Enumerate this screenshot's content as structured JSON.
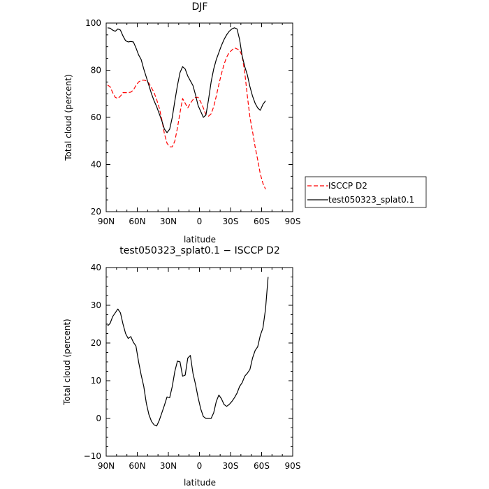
{
  "chart_data": [
    {
      "type": "line",
      "title": "DJF",
      "xlabel": "latitude",
      "ylabel": "Total cloud (percent)",
      "xlim": [
        90,
        -90
      ],
      "ylim": [
        20,
        100
      ],
      "x_ticks": [
        90,
        60,
        30,
        0,
        -30,
        -60,
        -90
      ],
      "x_tick_labels": [
        "90N",
        "60N",
        "30N",
        "0",
        "30S",
        "60S",
        "90S"
      ],
      "y_ticks": [
        20,
        40,
        60,
        80,
        100
      ],
      "y_tick_labels": [
        "20",
        "40",
        "60",
        "80",
        "100"
      ],
      "legend": "right of plot",
      "series": [
        {
          "name": "ISCCP D2",
          "color": "#ff0000",
          "dash": "dashed",
          "points": [
            [
              88.75,
              73.7
            ],
            [
              86.25,
              73.0
            ],
            [
              83.75,
              70.5
            ],
            [
              81.25,
              68.5
            ],
            [
              78.75,
              68.0
            ],
            [
              76.25,
              69.0
            ],
            [
              73.75,
              70.5
            ],
            [
              71.25,
              70.5
            ],
            [
              68.75,
              70.5
            ],
            [
              66.25,
              70.7
            ],
            [
              63.75,
              71.6
            ],
            [
              61.25,
              73.5
            ],
            [
              58.75,
              75.0
            ],
            [
              56.25,
              75.7
            ],
            [
              53.75,
              75.8
            ],
            [
              51.25,
              75.5
            ],
            [
              48.75,
              74.5
            ],
            [
              46.25,
              72.5
            ],
            [
              43.75,
              70.5
            ],
            [
              41.25,
              67.5
            ],
            [
              38.75,
              64.0
            ],
            [
              36.25,
              59.0
            ],
            [
              33.75,
              53.0
            ],
            [
              31.25,
              49.0
            ],
            [
              28.75,
              47.5
            ],
            [
              26.25,
              47.5
            ],
            [
              23.75,
              50.0
            ],
            [
              21.25,
              55.5
            ],
            [
              18.75,
              62.0
            ],
            [
              16.25,
              68.0
            ],
            [
              13.75,
              66.0
            ],
            [
              11.25,
              64.0
            ],
            [
              8.75,
              66.0
            ],
            [
              6.25,
              67.5
            ],
            [
              3.75,
              68.5
            ],
            [
              1.25,
              68.5
            ],
            [
              -1.25,
              66.5
            ],
            [
              -3.75,
              64.0
            ],
            [
              -6.25,
              61.0
            ],
            [
              -8.75,
              60.5
            ],
            [
              -11.25,
              61.5
            ],
            [
              -13.75,
              64.5
            ],
            [
              -16.25,
              69.0
            ],
            [
              -18.75,
              74.0
            ],
            [
              -21.25,
              78.5
            ],
            [
              -23.75,
              82.5
            ],
            [
              -26.25,
              85.5
            ],
            [
              -28.75,
              87.5
            ],
            [
              -31.25,
              88.5
            ],
            [
              -33.75,
              89.5
            ],
            [
              -36.25,
              89.0
            ],
            [
              -38.75,
              88.5
            ],
            [
              -41.25,
              86.0
            ],
            [
              -43.75,
              79.0
            ],
            [
              -46.25,
              69.0
            ],
            [
              -48.75,
              60.0
            ],
            [
              -51.25,
              54.0
            ],
            [
              -53.75,
              47.5
            ],
            [
              -56.25,
              42.0
            ],
            [
              -58.75,
              36.0
            ],
            [
              -61.25,
              32.0
            ],
            [
              -63.75,
              29.5
            ]
          ]
        },
        {
          "name": "test050323_splat0.1",
          "color": "#000000",
          "dash": "solid",
          "points": [
            [
              88.75,
              98.0
            ],
            [
              86.25,
              97.8
            ],
            [
              83.75,
              97.0
            ],
            [
              81.25,
              96.5
            ],
            [
              78.75,
              97.5
            ],
            [
              76.25,
              97.0
            ],
            [
              73.75,
              94.5
            ],
            [
              71.25,
              92.5
            ],
            [
              68.75,
              92.0
            ],
            [
              66.25,
              92.2
            ],
            [
              63.75,
              92.0
            ],
            [
              61.25,
              89.5
            ],
            [
              58.75,
              86.5
            ],
            [
              56.25,
              84.5
            ],
            [
              53.75,
              80.5
            ],
            [
              51.25,
              77.0
            ],
            [
              48.75,
              73.5
            ],
            [
              46.25,
              70.0
            ],
            [
              43.75,
              67.0
            ],
            [
              41.25,
              64.5
            ],
            [
              38.75,
              61.5
            ],
            [
              36.25,
              58.5
            ],
            [
              33.75,
              55.0
            ],
            [
              31.25,
              53.5
            ],
            [
              28.75,
              55.0
            ],
            [
              26.25,
              60.0
            ],
            [
              23.75,
              67.0
            ],
            [
              21.25,
              73.5
            ],
            [
              18.75,
              79.0
            ],
            [
              16.25,
              81.5
            ],
            [
              13.75,
              80.5
            ],
            [
              11.25,
              77.5
            ],
            [
              8.75,
              75.5
            ],
            [
              6.25,
              73.5
            ],
            [
              3.75,
              69.5
            ],
            [
              1.25,
              65.0
            ],
            [
              -1.25,
              62.5
            ],
            [
              -3.75,
              60.0
            ],
            [
              -6.25,
              61.0
            ],
            [
              -8.75,
              67.5
            ],
            [
              -11.25,
              75.0
            ],
            [
              -13.75,
              80.5
            ],
            [
              -16.25,
              84.5
            ],
            [
              -18.75,
              87.5
            ],
            [
              -21.25,
              90.5
            ],
            [
              -23.75,
              93.0
            ],
            [
              -26.25,
              95.0
            ],
            [
              -28.75,
              96.5
            ],
            [
              -31.25,
              97.5
            ],
            [
              -33.75,
              98.0
            ],
            [
              -36.25,
              97.5
            ],
            [
              -38.75,
              93.0
            ],
            [
              -41.25,
              86.0
            ],
            [
              -43.75,
              81.5
            ],
            [
              -46.25,
              78.0
            ],
            [
              -48.75,
              73.0
            ],
            [
              -51.25,
              69.0
            ],
            [
              -53.75,
              66.0
            ],
            [
              -56.25,
              64.0
            ],
            [
              -58.75,
              63.0
            ],
            [
              -61.25,
              65.5
            ],
            [
              -63.75,
              67.0
            ]
          ]
        }
      ]
    },
    {
      "type": "line",
      "title": "test050323_splat0.1 − ISCCP D2",
      "xlabel": "latitude",
      "ylabel": "Total cloud (percent)",
      "xlim": [
        90,
        -90
      ],
      "ylim": [
        -10,
        40
      ],
      "x_ticks": [
        90,
        60,
        30,
        0,
        -30,
        -60,
        -90
      ],
      "x_tick_labels": [
        "90N",
        "60N",
        "30N",
        "0",
        "30S",
        "60S",
        "90S"
      ],
      "y_ticks": [
        -10,
        0,
        10,
        20,
        30,
        40
      ],
      "y_tick_labels": [
        "−10",
        "0",
        "10",
        "20",
        "30",
        "40"
      ],
      "series": [
        {
          "color": "#000000",
          "dash": "solid",
          "points": [
            [
              88.75,
              24.5
            ],
            [
              86.25,
              25.2
            ],
            [
              83.75,
              27.0
            ],
            [
              81.25,
              28.0
            ],
            [
              78.75,
              29.0
            ],
            [
              76.25,
              28.0
            ],
            [
              73.75,
              25.0
            ],
            [
              71.25,
              22.5
            ],
            [
              68.75,
              21.2
            ],
            [
              66.25,
              21.7
            ],
            [
              63.75,
              20.2
            ],
            [
              61.25,
              19.2
            ],
            [
              58.75,
              15.0
            ],
            [
              56.25,
              11.5
            ],
            [
              53.75,
              8.5
            ],
            [
              51.25,
              4.0
            ],
            [
              48.75,
              1.0
            ],
            [
              46.25,
              -0.8
            ],
            [
              43.75,
              -1.7
            ],
            [
              41.25,
              -2.0
            ],
            [
              38.75,
              -0.5
            ],
            [
              36.25,
              1.5
            ],
            [
              33.75,
              3.5
            ],
            [
              31.25,
              5.7
            ],
            [
              28.75,
              5.5
            ],
            [
              26.25,
              8.5
            ],
            [
              23.75,
              12.5
            ],
            [
              21.25,
              15.2
            ],
            [
              18.75,
              15.0
            ],
            [
              16.25,
              11.2
            ],
            [
              13.75,
              11.5
            ],
            [
              11.25,
              16.0
            ],
            [
              8.75,
              16.7
            ],
            [
              6.25,
              12.0
            ],
            [
              3.75,
              9.0
            ],
            [
              1.25,
              5.5
            ],
            [
              -1.25,
              2.5
            ],
            [
              -3.75,
              0.5
            ],
            [
              -6.25,
              0.0
            ],
            [
              -8.75,
              0.0
            ],
            [
              -11.25,
              0.0
            ],
            [
              -13.75,
              1.5
            ],
            [
              -16.25,
              4.5
            ],
            [
              -18.75,
              6.2
            ],
            [
              -21.25,
              5.2
            ],
            [
              -23.75,
              3.7
            ],
            [
              -26.25,
              3.2
            ],
            [
              -28.75,
              3.7
            ],
            [
              -31.25,
              4.5
            ],
            [
              -33.75,
              5.5
            ],
            [
              -36.25,
              6.7
            ],
            [
              -38.75,
              8.5
            ],
            [
              -41.25,
              9.5
            ],
            [
              -43.75,
              11.2
            ],
            [
              -46.25,
              12.0
            ],
            [
              -48.75,
              13.0
            ],
            [
              -51.25,
              16.0
            ],
            [
              -53.75,
              18.0
            ],
            [
              -56.25,
              19.0
            ],
            [
              -58.75,
              22.0
            ],
            [
              -61.25,
              24.0
            ],
            [
              -63.75,
              29.0
            ],
            [
              -66.25,
              37.5
            ]
          ]
        }
      ]
    }
  ]
}
